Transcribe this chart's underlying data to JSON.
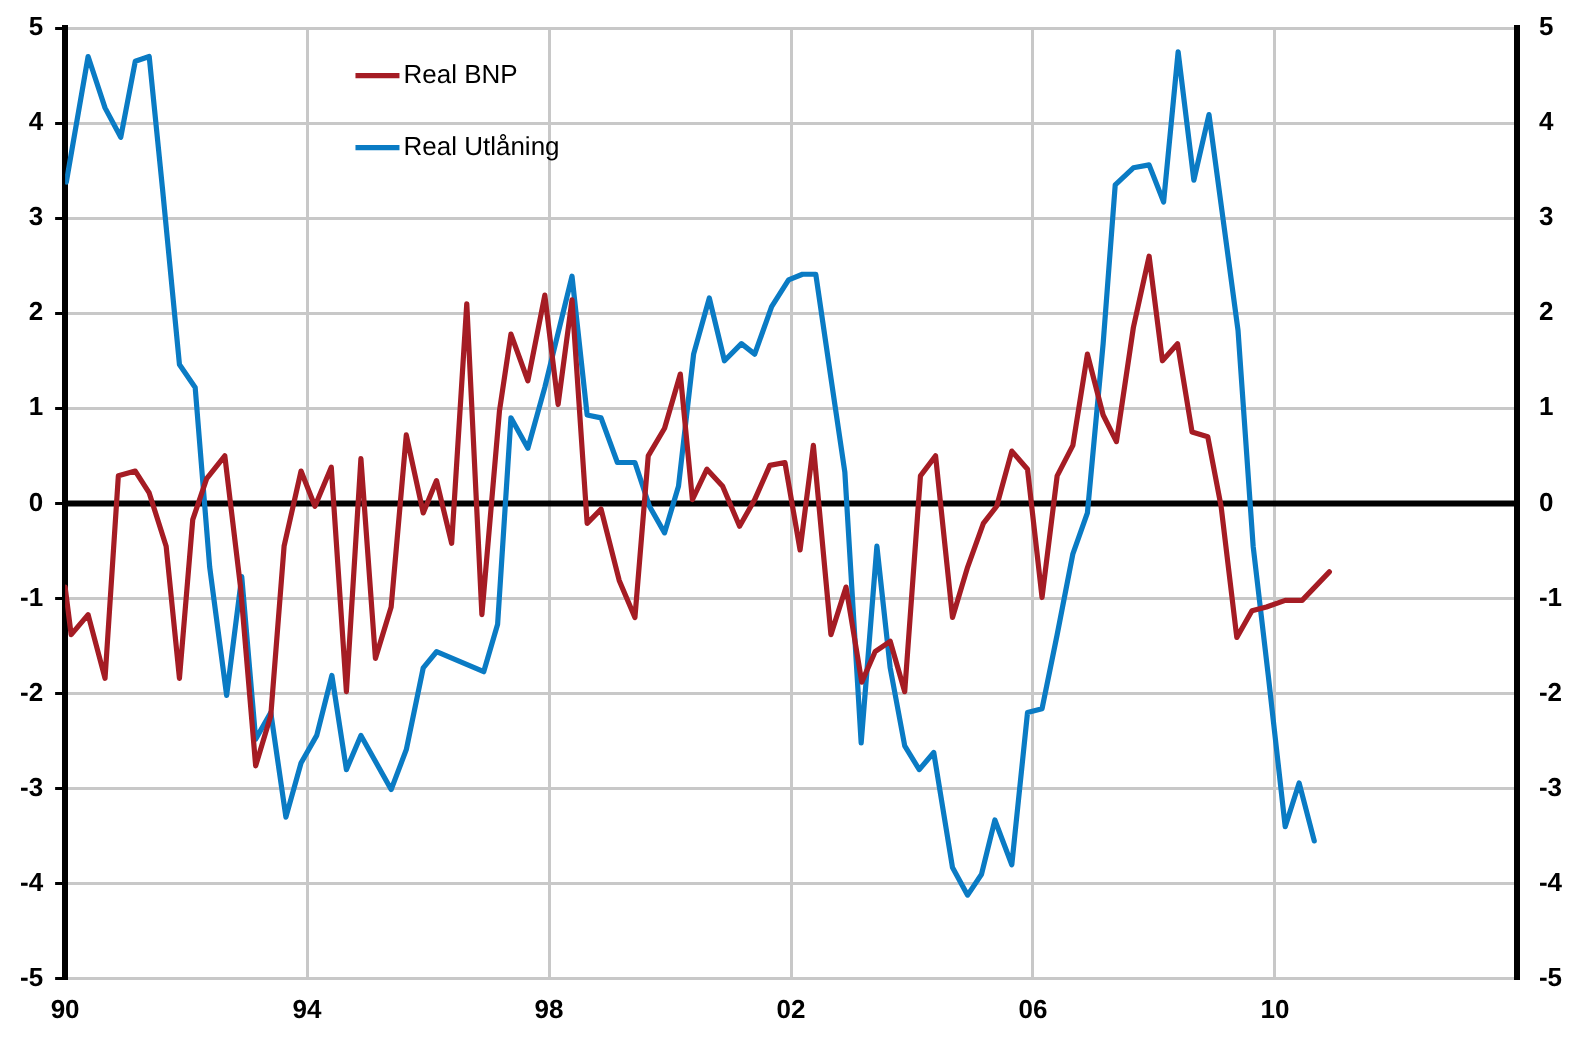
{
  "chart_data": {
    "type": "line",
    "xlim": [
      1990,
      2014
    ],
    "xticks": [
      {
        "value": 1990,
        "label": "90"
      },
      {
        "value": 1994,
        "label": "94"
      },
      {
        "value": 1998,
        "label": "98"
      },
      {
        "value": 2002,
        "label": "02"
      },
      {
        "value": 2006,
        "label": "06"
      },
      {
        "value": 2010,
        "label": "10"
      }
    ],
    "ylim": [
      -5,
      5
    ],
    "yticks": [
      -5,
      -4,
      -3,
      -2,
      -1,
      0,
      1,
      2,
      3,
      4,
      5
    ],
    "y2lim": [
      -5,
      5
    ],
    "y2ticks": [
      -5,
      -4,
      -3,
      -2,
      -1,
      0,
      1,
      2,
      3,
      4,
      5
    ],
    "grid": true,
    "legend": "top left",
    "marker": "none",
    "line_style": "solid",
    "ref_lines": [
      {
        "axis": "y",
        "value": 0,
        "color": "#000000"
      }
    ],
    "series": [
      {
        "name": "Real BNP",
        "color": "#a51c24",
        "x": [
          1990.0,
          1990.1,
          1990.38,
          1990.66,
          1990.88,
          1991.16,
          1991.39,
          1991.67,
          1991.89,
          1992.11,
          1992.34,
          1992.64,
          1992.9,
          1993.15,
          1993.4,
          1993.62,
          1993.9,
          1994.13,
          1994.4,
          1994.65,
          1994.89,
          1995.13,
          1995.39,
          1995.64,
          1995.92,
          1996.14,
          1996.39,
          1996.64,
          1996.89,
          1997.18,
          1997.37,
          1997.65,
          1997.93,
          1998.15,
          1998.38,
          1998.63,
          1998.86,
          1999.16,
          1999.42,
          1999.64,
          1999.91,
          2000.17,
          2000.37,
          2000.61,
          2000.87,
          2001.15,
          2001.4,
          2001.65,
          2001.9,
          2002.15,
          2002.37,
          2002.66,
          2002.91,
          2003.17,
          2003.39,
          2003.64,
          2003.88,
          2004.14,
          2004.39,
          2004.67,
          2004.92,
          2005.18,
          2005.4,
          2005.65,
          2005.91,
          2006.15,
          2006.4,
          2006.66,
          2006.9,
          2007.16,
          2007.38,
          2007.66,
          2007.92,
          2008.14,
          2008.39,
          2008.63,
          2008.89,
          2009.11,
          2009.37,
          2009.62,
          2009.86,
          2010.17,
          2010.45,
          2010.9
        ],
        "values": [
          -0.88,
          -1.38,
          -1.17,
          -1.84,
          0.29,
          0.34,
          0.11,
          -0.45,
          -1.84,
          -0.17,
          0.26,
          0.5,
          -0.88,
          -2.76,
          -2.23,
          -0.45,
          0.34,
          -0.03,
          0.38,
          -1.98,
          0.47,
          -1.63,
          -1.09,
          0.72,
          -0.1,
          0.24,
          -0.42,
          2.1,
          -1.17,
          0.97,
          1.78,
          1.29,
          2.19,
          1.04,
          2.14,
          -0.21,
          -0.06,
          -0.81,
          -1.2,
          0.5,
          0.79,
          1.36,
          0.04,
          0.36,
          0.18,
          -0.24,
          0.04,
          0.4,
          0.43,
          -0.49,
          0.61,
          -1.38,
          -0.88,
          -1.88,
          -1.56,
          -1.45,
          -1.98,
          0.29,
          0.5,
          -1.2,
          -0.67,
          -0.21,
          -0.03,
          0.55,
          0.36,
          -0.99,
          0.29,
          0.61,
          1.57,
          0.93,
          0.65,
          1.85,
          2.6,
          1.5,
          1.68,
          0.75,
          0.7,
          -0.03,
          -1.41,
          -1.13,
          -1.09,
          -1.02,
          -1.02,
          -0.72
        ]
      },
      {
        "name": "Real Utlåning",
        "color": "#0a7bc4",
        "x": [
          1990.02,
          1990.38,
          1990.66,
          1990.92,
          1991.16,
          1991.39,
          1991.61,
          1991.89,
          1992.15,
          1992.39,
          1992.67,
          1992.92,
          1993.15,
          1993.4,
          1993.65,
          1993.9,
          1994.16,
          1994.41,
          1994.65,
          1994.89,
          1995.39,
          1995.64,
          1995.92,
          1996.14,
          1996.92,
          1997.15,
          1997.37,
          1997.65,
          1997.93,
          1998.38,
          1998.63,
          1998.86,
          1999.13,
          1999.42,
          1999.66,
          1999.91,
          2000.14,
          2000.39,
          2000.65,
          2000.9,
          2001.18,
          2001.4,
          2001.68,
          2001.96,
          2002.19,
          2002.41,
          2002.66,
          2002.89,
          2003.16,
          2003.42,
          2003.64,
          2003.88,
          2004.12,
          2004.36,
          2004.67,
          2004.92,
          2005.15,
          2005.37,
          2005.65,
          2005.91,
          2006.15,
          2006.4,
          2006.66,
          2006.9,
          2007.16,
          2007.36,
          2007.66,
          2007.92,
          2008.16,
          2008.4,
          2008.66,
          2008.91,
          2009.39,
          2009.64,
          2009.89,
          2010.17,
          2010.4,
          2010.65
        ],
        "values": [
          3.38,
          4.7,
          4.16,
          3.85,
          4.65,
          4.7,
          3.31,
          1.46,
          1.22,
          -0.67,
          -2.02,
          -0.77,
          -2.48,
          -2.2,
          -3.3,
          -2.73,
          -2.44,
          -1.81,
          -2.8,
          -2.44,
          -3.01,
          -2.59,
          -1.73,
          -1.56,
          -1.77,
          -1.27,
          0.9,
          0.58,
          1.22,
          2.39,
          0.93,
          0.9,
          0.43,
          0.43,
          -0.03,
          -0.31,
          0.18,
          1.57,
          2.16,
          1.5,
          1.68,
          1.57,
          2.07,
          2.35,
          2.41,
          2.41,
          1.32,
          0.33,
          -2.52,
          -0.45,
          -1.73,
          -2.55,
          -2.8,
          -2.62,
          -3.83,
          -4.12,
          -3.9,
          -3.33,
          -3.8,
          -2.2,
          -2.16,
          -1.38,
          -0.53,
          -0.1,
          1.68,
          3.35,
          3.53,
          3.56,
          3.17,
          4.75,
          3.4,
          4.09,
          1.82,
          -0.45,
          -1.81,
          -3.4,
          -2.94,
          -3.55
        ]
      }
    ]
  }
}
